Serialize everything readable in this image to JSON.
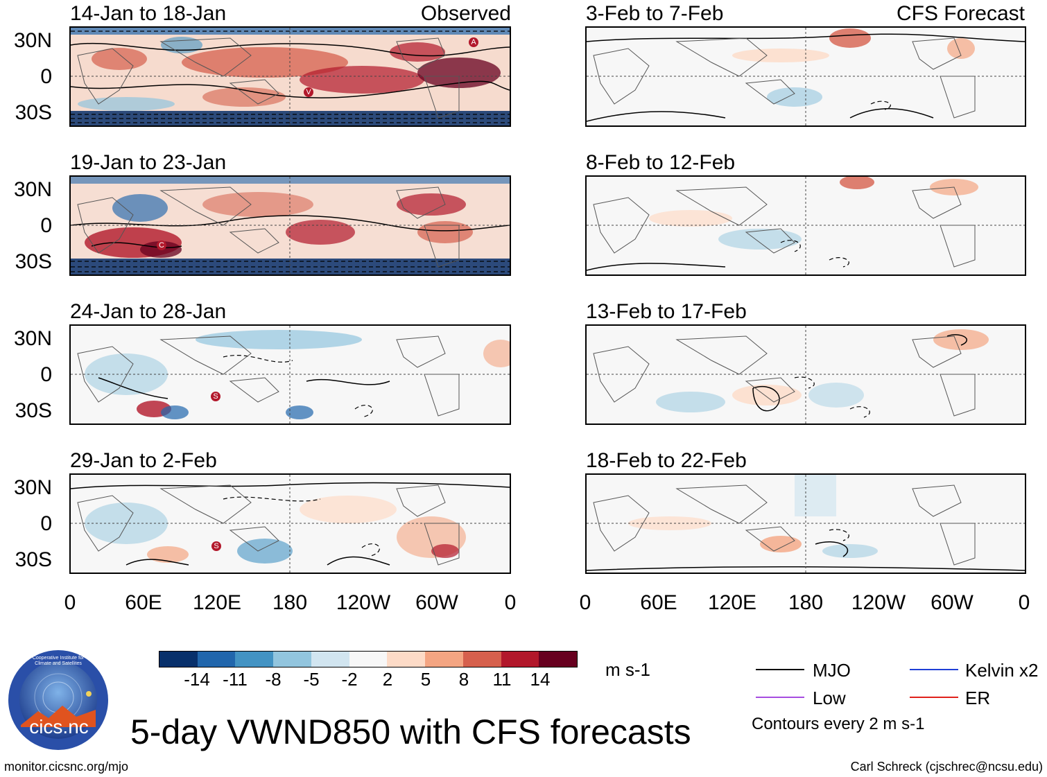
{
  "observed_tag": "Observed",
  "forecast_tag": "CFS Forecast",
  "observed_panels": [
    {
      "title": "14-Jan to 18-Jan",
      "markers": [
        "A",
        "V"
      ]
    },
    {
      "title": "19-Jan to 23-Jan",
      "markers": [
        "C"
      ]
    },
    {
      "title": "24-Jan to 28-Jan",
      "markers": [
        "S"
      ]
    },
    {
      "title": "29-Jan to 2-Feb",
      "markers": [
        "S"
      ]
    }
  ],
  "forecast_panels": [
    {
      "title": "3-Feb to 7-Feb"
    },
    {
      "title": "8-Feb to 12-Feb"
    },
    {
      "title": "13-Feb to 17-Feb"
    },
    {
      "title": "18-Feb to 22-Feb"
    }
  ],
  "lat_labels": [
    "30N",
    "0",
    "30S"
  ],
  "lon_labels": [
    "0",
    "60E",
    "120E",
    "180",
    "120W",
    "60W",
    "0"
  ],
  "colorbar": {
    "colors": [
      "#08306b",
      "#2166ac",
      "#4393c3",
      "#92c5de",
      "#d1e5f0",
      "#f7f7f7",
      "#fddbc7",
      "#f4a582",
      "#d6604d",
      "#b2182b",
      "#67001f"
    ],
    "labels": [
      "-14",
      "-11",
      "-8",
      "-5",
      "-2",
      "2",
      "5",
      "8",
      "11",
      "14"
    ],
    "units": "m s-1"
  },
  "legend": {
    "mjo": {
      "label": "MJO",
      "color": "#000000"
    },
    "kelvin": {
      "label": "Kelvin x2",
      "color": "#1f3fd6"
    },
    "low": {
      "label": "Low",
      "color": "#a64ce0"
    },
    "er": {
      "label": "ER",
      "color": "#e0201a"
    },
    "contours": "Contours every 2 m s-1"
  },
  "logo_text": "cics.nc",
  "logo_ring_text": "Cooperative Institute for Climate and Satellites",
  "main_title": "5-day VWND850 with CFS forecasts",
  "footer_left": "monitor.cicsnc.org/mjo",
  "footer_right": "Carl Schreck (cjschrec@ncsu.edu)"
}
